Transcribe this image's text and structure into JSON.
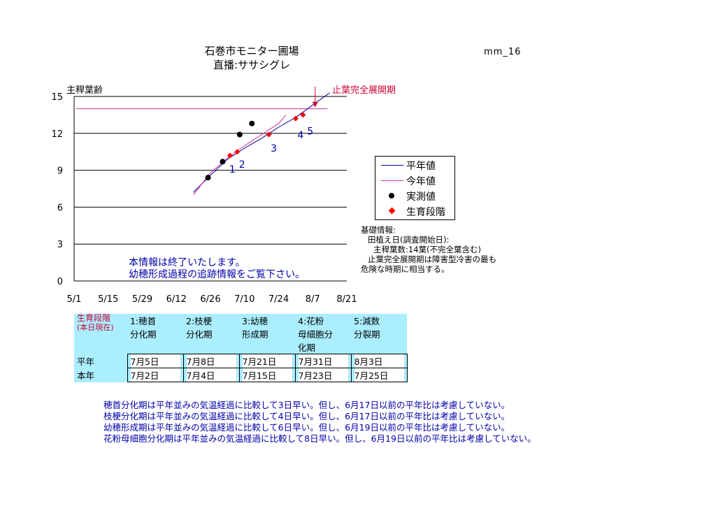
{
  "header": {
    "title_line1": "石巻市モニター圃場",
    "title_line2": "直播:ササシグレ",
    "code": "mm_16"
  },
  "chart_data": {
    "type": "line",
    "ylabel": "主稈葉齢",
    "xlabel": "",
    "ylim": [
      0,
      15
    ],
    "yticks": [
      0,
      3,
      6,
      9,
      12,
      15
    ],
    "xlim": [
      "5/1",
      "8/21"
    ],
    "xticks": [
      "5/1",
      "5/15",
      "5/29",
      "6/12",
      "6/26",
      "7/10",
      "7/24",
      "8/7",
      "8/21"
    ],
    "grid": "horizontal",
    "legend_position": "right",
    "annotation": {
      "text": "止葉完全展開期",
      "date": "8/8",
      "value": 14.0
    },
    "reference_line": {
      "value": 14.0,
      "from": "5/1",
      "to": "8/13",
      "color": "#cc3399"
    },
    "series": [
      {
        "name": "平年値",
        "kind": "line",
        "color": "#000099",
        "points": [
          [
            "6/19",
            7.2
          ],
          [
            "6/26",
            8.6
          ],
          [
            "7/3",
            9.9
          ],
          [
            "7/10",
            10.8
          ],
          [
            "7/17",
            11.6
          ],
          [
            "7/24",
            12.5
          ],
          [
            "7/31",
            13.3
          ],
          [
            "8/7",
            14.3
          ],
          [
            "8/14",
            15.3
          ]
        ]
      },
      {
        "name": "今年値",
        "kind": "line",
        "color": "#cc3399",
        "points": [
          [
            "6/19",
            7.0
          ],
          [
            "6/26",
            8.8
          ],
          [
            "7/3",
            10.0
          ],
          [
            "7/10",
            11.0
          ],
          [
            "7/17",
            11.9
          ],
          [
            "7/24",
            12.8
          ],
          [
            "7/27",
            13.5
          ]
        ]
      },
      {
        "name": "実測値",
        "kind": "points",
        "color": "#000000",
        "points": [
          [
            "6/25",
            8.4
          ],
          [
            "7/1",
            9.7
          ],
          [
            "7/8",
            11.9
          ],
          [
            "7/13",
            12.8
          ]
        ]
      },
      {
        "name": "生育段階",
        "kind": "points",
        "color": "#ff0000",
        "points": [
          [
            "7/4",
            10.2
          ],
          [
            "7/7",
            10.5
          ],
          [
            "7/20",
            11.9
          ],
          [
            "7/31",
            13.2
          ],
          [
            "8/3",
            13.5
          ]
        ]
      }
    ],
    "stage_numbers": [
      {
        "label": "1",
        "date": "7/5",
        "value": 8.8
      },
      {
        "label": "2",
        "date": "7/9",
        "value": 9.2
      },
      {
        "label": "3",
        "date": "7/22",
        "value": 10.5
      },
      {
        "label": "4",
        "date": "8/2",
        "value": 11.6
      },
      {
        "label": "5",
        "date": "8/6",
        "value": 11.9
      }
    ]
  },
  "legend": {
    "items": [
      "平年値",
      "今年値",
      "実測値",
      "生育段階"
    ]
  },
  "info": {
    "heading": "基礎情報:",
    "planting": "田植え日(調査開始日):",
    "leaves": "主稈葉数:14葉(不完全葉含む)",
    "note1": "止葉完全展開期は障害型冷害の最も",
    "note2": "危険な時期に相当する。"
  },
  "notice": {
    "line1": "本情報は終了いたします。",
    "line2": "幼穂形成過程の追跡情報をご覧下さい。"
  },
  "stage_table": {
    "corner_line1": "生育段階",
    "corner_line2": "(本日現在)",
    "headers": [
      [
        "1:穂首",
        "分化期",
        ""
      ],
      [
        "2:枝梗",
        "分化期",
        ""
      ],
      [
        "3:幼穂",
        "形成期",
        ""
      ],
      [
        "4:花粉",
        "母細胞分",
        "化期"
      ],
      [
        "5:減数",
        "分裂期",
        ""
      ]
    ],
    "rows": [
      {
        "label": "平年",
        "values": [
          "7月5日",
          "7月8日",
          "7月21日",
          "7月31日",
          "8月3日"
        ]
      },
      {
        "label": "本年",
        "values": [
          "7月2日",
          "7月4日",
          "7月15日",
          "7月23日",
          "7月25日"
        ]
      }
    ]
  },
  "notes": [
    "穂首分化期は平年並みの気温経過に比較して3日早い。但し、6月17日以前の平年比は考慮していない。",
    "枝梗分化期は平年並みの気温経過に比較して4日早い。但し、6月17日以前の平年比は考慮していない。",
    "幼穂形成期は平年並みの気温経過に比較して6日早い。但し、6月19日以前の平年比は考慮していない。",
    "花粉母細胞分化期は平年並みの気温経過に比較して8日早い。但し、6月19日以前の平年比は考慮していない。"
  ]
}
